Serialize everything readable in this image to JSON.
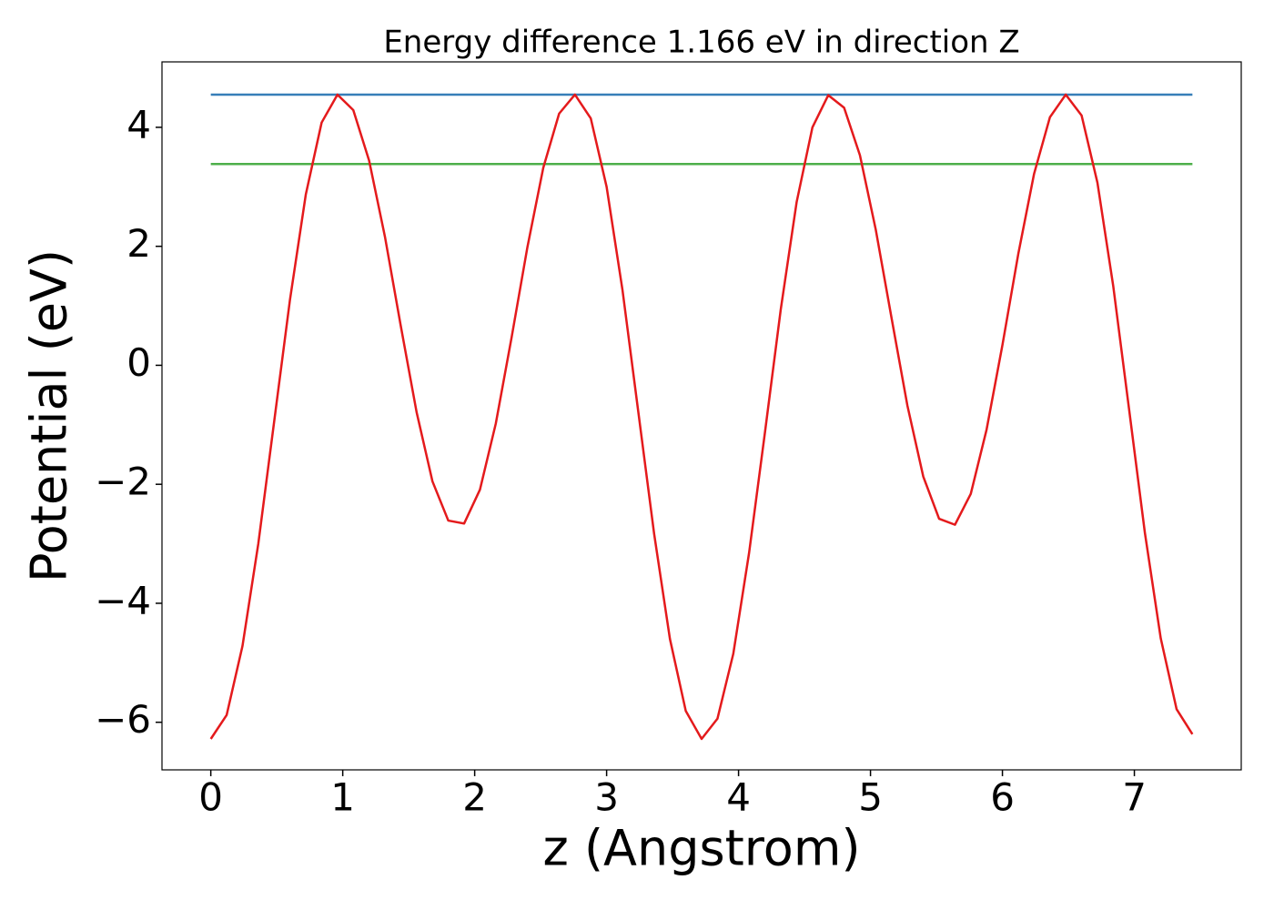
{
  "chart_data": {
    "type": "line",
    "title": "Energy difference 1.166 eV in direction Z",
    "xlabel": "z (Angstrom)",
    "ylabel": "Potential (eV)",
    "xlim": [
      -0.37,
      7.81
    ],
    "ylim": [
      -6.8,
      5.1
    ],
    "xticks": [
      0,
      1,
      2,
      3,
      4,
      5,
      6,
      7
    ],
    "yticks": [
      {
        "value": -6,
        "label": "−6"
      },
      {
        "value": -4,
        "label": "−4"
      },
      {
        "value": -2,
        "label": "−2"
      },
      0,
      2,
      4
    ],
    "series": [
      {
        "color": "#377eb8",
        "x": [
          0,
          7.44
        ],
        "values": [
          4.55,
          4.55
        ]
      },
      {
        "color": "#4daf4a",
        "x": [
          0,
          7.44
        ],
        "values": [
          3.384,
          3.384
        ]
      },
      {
        "color": "#e41a1c",
        "x": [
          0,
          0.12,
          0.24,
          0.36,
          0.48,
          0.6,
          0.72,
          0.84,
          0.96,
          1.08,
          1.2,
          1.32,
          1.44,
          1.56,
          1.68,
          1.8,
          1.92,
          2.04,
          2.16,
          2.28,
          2.4,
          2.52,
          2.64,
          2.76,
          2.88,
          3.0,
          3.12,
          3.24,
          3.36,
          3.48,
          3.6,
          3.72,
          3.84,
          3.96,
          4.08,
          4.2,
          4.32,
          4.44,
          4.56,
          4.68,
          4.8,
          4.92,
          5.04,
          5.16,
          5.28,
          5.4,
          5.52,
          5.64,
          5.76,
          5.88,
          6.0,
          6.12,
          6.24,
          6.36,
          6.48,
          6.6,
          6.72,
          6.84,
          6.96,
          7.08,
          7.2,
          7.32,
          7.44
        ],
        "values": [
          -6.28,
          -5.88,
          -4.72,
          -3.0,
          -0.95,
          1.1,
          2.87,
          4.08,
          4.55,
          4.29,
          3.44,
          2.16,
          0.66,
          -0.79,
          -1.95,
          -2.61,
          -2.66,
          -2.09,
          -0.98,
          0.47,
          1.99,
          3.32,
          4.23,
          4.55,
          4.15,
          3.0,
          1.27,
          -0.78,
          -2.83,
          -4.6,
          -5.81,
          -6.28,
          -5.94,
          -4.85,
          -3.15,
          -1.13,
          0.94,
          2.74,
          4.0,
          4.54,
          4.33,
          3.53,
          2.28,
          0.79,
          -0.68,
          -1.87,
          -2.58,
          -2.68,
          -2.16,
          -1.08,
          0.34,
          1.87,
          3.22,
          4.17,
          4.55,
          4.2,
          3.07,
          1.33,
          -0.74,
          -2.82,
          -4.59,
          -5.78,
          -6.2
        ]
      }
    ]
  }
}
